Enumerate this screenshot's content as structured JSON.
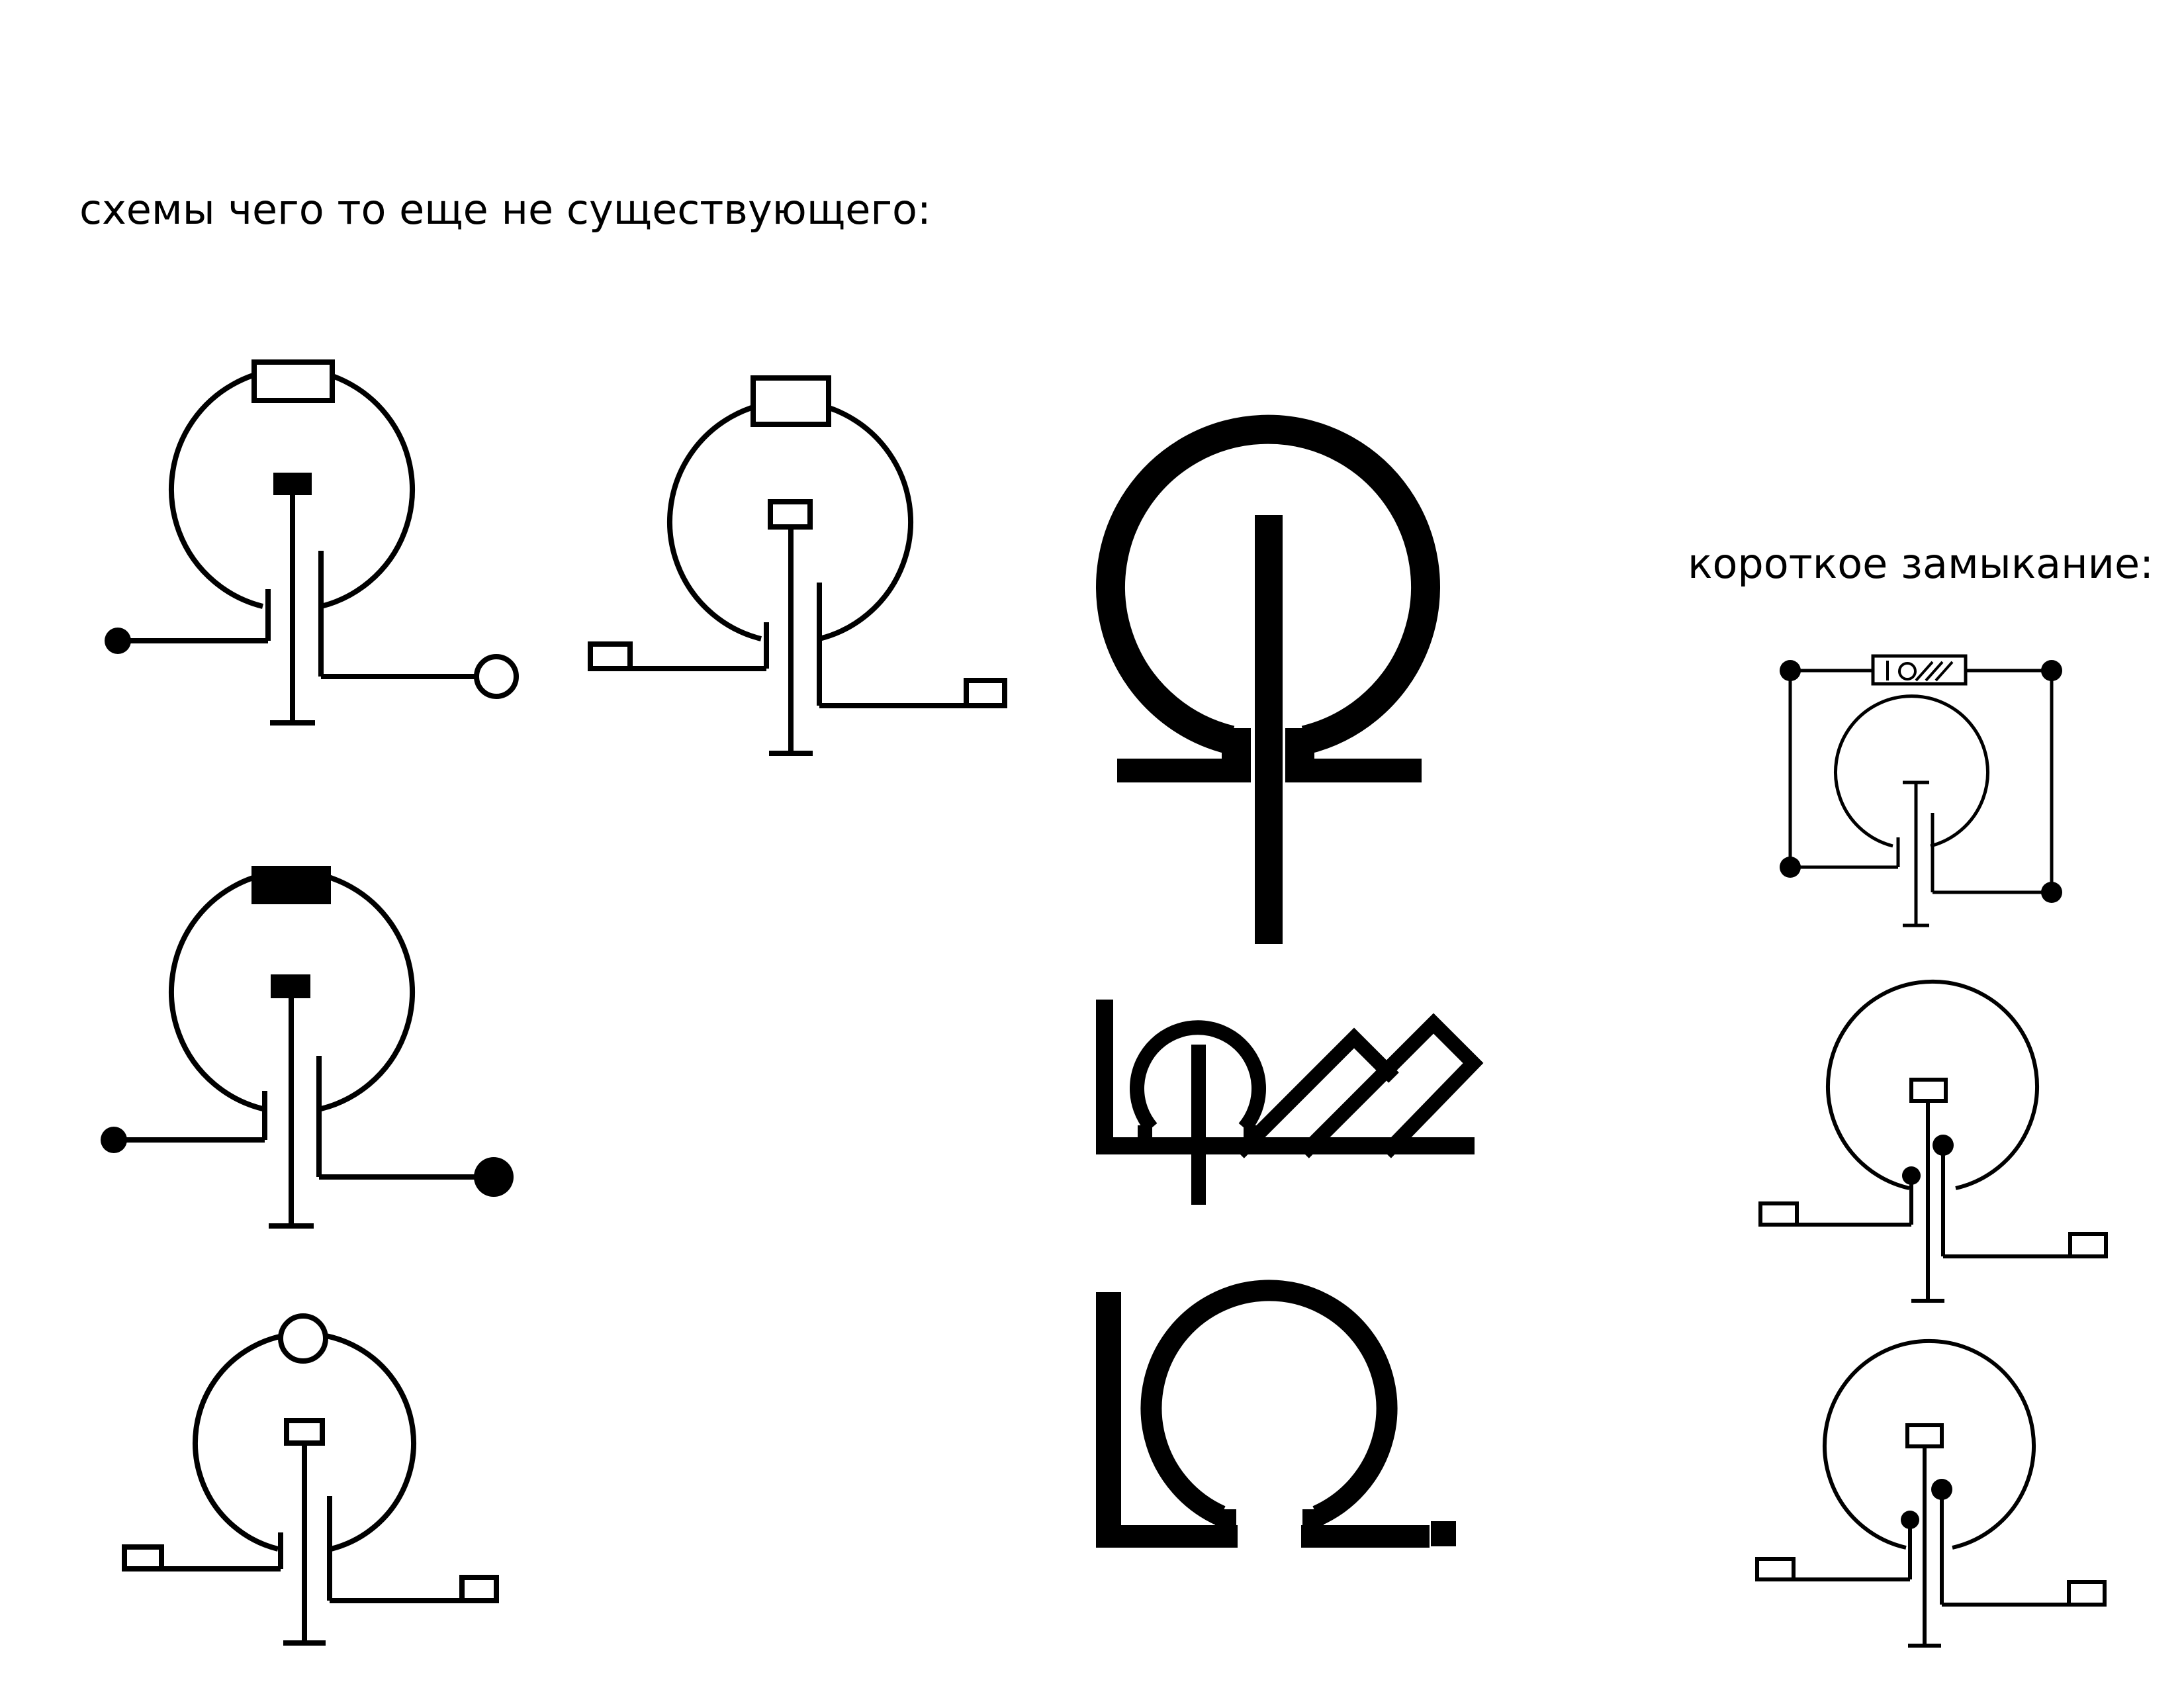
{
  "headings": {
    "main": "схемы чего то еще не существующего:",
    "short_circuit": "короткое замыкание:"
  },
  "colors": {
    "ink": "#000000",
    "background": "#ffffff"
  },
  "icons": [
    "schematic-variant-1",
    "schematic-variant-2",
    "schematic-variant-3",
    "schematic-variant-4",
    "omega-logo-large",
    "omega-logo-wordmark",
    "omega-logo-with-dot",
    "short-circuit-framed",
    "short-circuit-variant-1",
    "short-circuit-variant-2"
  ]
}
